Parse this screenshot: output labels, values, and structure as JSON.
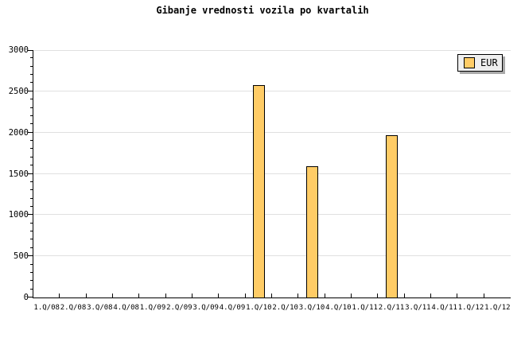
{
  "title": "Gibanje vrednosti vozila po kvartalih",
  "legend": {
    "label": "EUR"
  },
  "colors": {
    "background": "#FFFFFF",
    "bar_fill": "#FFCC66",
    "bar_border": "#000000",
    "grid": "#E0E0E0",
    "axis": "#000000",
    "legend_bg": "#EFEFEF",
    "legend_shadow": "#A9A9A9",
    "text": "#000000"
  },
  "chart_data": {
    "type": "bar",
    "title": "Gibanje vrednosti vozila po kvartalih",
    "categories": [
      "1.Q/08",
      "2.Q/08",
      "3.Q/08",
      "4.Q/08",
      "1.Q/09",
      "2.Q/09",
      "3.Q/09",
      "4.Q/09",
      "1.Q/10",
      "2.Q/10",
      "3.Q/10",
      "4.Q/10",
      "1.Q/11",
      "2.Q/11",
      "3.Q/11",
      "4.Q/11",
      "1.Q/12",
      "1.Q/12"
    ],
    "series": [
      {
        "name": "EUR",
        "values": [
          0,
          0,
          0,
          0,
          0,
          0,
          0,
          0,
          2580,
          0,
          1590,
          0,
          0,
          1970,
          0,
          0,
          0,
          0
        ]
      }
    ],
    "xlabel": "",
    "ylabel": "",
    "ylim": [
      0,
      3000
    ],
    "y_major_ticks": [
      0,
      500,
      1000,
      1500,
      2000,
      2500,
      3000
    ],
    "y_minor_step": 100,
    "grid": "horizontal",
    "legend_position": "top-right"
  }
}
